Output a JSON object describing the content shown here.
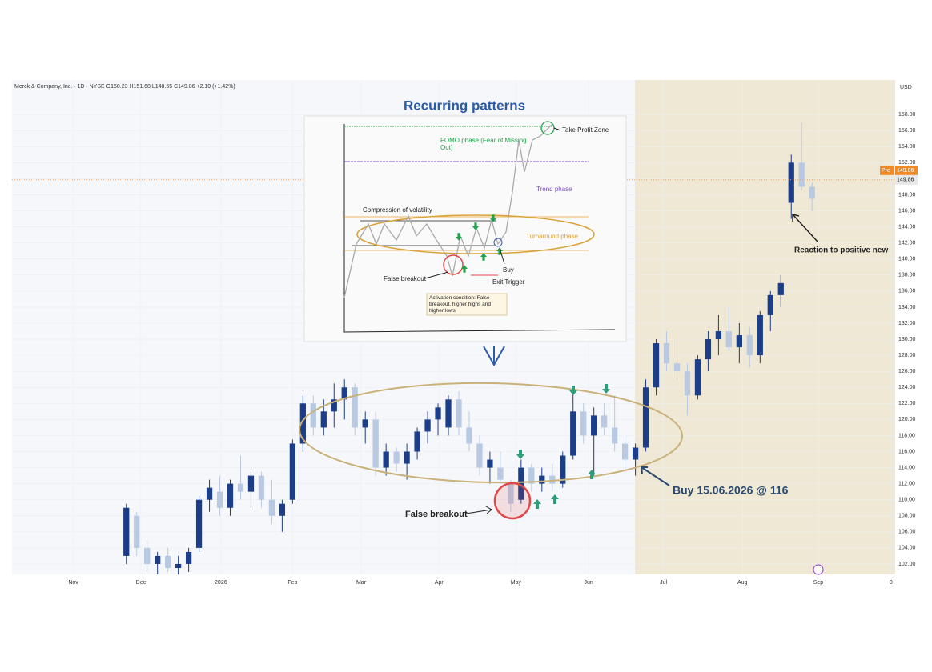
{
  "chart_data": {
    "type": "candlestick",
    "header": "Merck & Company, Inc. · 1D · NYSE  O150.23  H151.68  L148.55  C149.86  +2.10 (+1.42%)",
    "currency": "USD",
    "title": "Recurring patterns",
    "up_color": "#1c3d87",
    "down_color": "#b9c9e2",
    "xlim": [
      0,
      85
    ],
    "xticks": [
      {
        "value": 5.9,
        "label": "Nov"
      },
      {
        "value": 12.4,
        "label": "Dec"
      },
      {
        "value": 20.1,
        "label": "2026"
      },
      {
        "value": 27,
        "label": "Feb"
      },
      {
        "value": 33.6,
        "label": "Mar"
      },
      {
        "value": 41.1,
        "label": "Apr"
      },
      {
        "value": 48.5,
        "label": "May"
      },
      {
        "value": 55.5,
        "label": "Jun"
      },
      {
        "value": 62.7,
        "label": "Jul"
      },
      {
        "value": 70.3,
        "label": "Aug"
      },
      {
        "value": 77.6,
        "label": "Sep"
      },
      {
        "value": 84.6,
        "label": "0"
      }
    ],
    "ylim": [
      100.7,
      162.3
    ],
    "yticks": [
      {
        "value": 102,
        "label": "102.00"
      },
      {
        "value": 104,
        "label": "104.00"
      },
      {
        "value": 106,
        "label": "106.00"
      },
      {
        "value": 108,
        "label": "108.00"
      },
      {
        "value": 110,
        "label": "110.00"
      },
      {
        "value": 112,
        "label": "112.00"
      },
      {
        "value": 114,
        "label": "114.00"
      },
      {
        "value": 116,
        "label": "116.00"
      },
      {
        "value": 118,
        "label": "118.00"
      },
      {
        "value": 120,
        "label": "120.00"
      },
      {
        "value": 122,
        "label": "122.00"
      },
      {
        "value": 124,
        "label": "124.00"
      },
      {
        "value": 126,
        "label": "126.00"
      },
      {
        "value": 128,
        "label": "128.00"
      },
      {
        "value": 130,
        "label": "130.00"
      },
      {
        "value": 132,
        "label": "132.00"
      },
      {
        "value": 134,
        "label": "134.00"
      },
      {
        "value": 136,
        "label": "136.00"
      },
      {
        "value": 138,
        "label": "138.00"
      },
      {
        "value": 140,
        "label": "140.00"
      },
      {
        "value": 142,
        "label": "142.00"
      },
      {
        "value": 144,
        "label": "144.00"
      },
      {
        "value": 146,
        "label": "146.00"
      },
      {
        "value": 148,
        "label": "148.00"
      },
      {
        "value": 150,
        "label": "150.00"
      },
      {
        "value": 152,
        "label": "152.00"
      },
      {
        "value": 154,
        "label": "154.00"
      },
      {
        "value": 156,
        "label": "156.00"
      },
      {
        "value": 158,
        "label": "158.00"
      }
    ],
    "x": [
      11,
      12,
      13,
      14,
      15,
      16,
      17,
      18,
      19,
      20,
      21,
      22,
      23,
      24,
      25,
      26,
      27,
      28,
      29,
      30,
      31,
      32,
      33,
      34,
      35,
      36,
      37,
      38,
      39,
      40,
      41,
      42,
      43,
      44,
      45,
      46,
      47,
      48,
      49,
      50,
      51,
      52,
      53,
      54,
      55,
      56,
      57,
      58,
      59,
      60,
      61,
      62,
      63,
      64,
      65,
      66,
      67,
      68,
      69,
      70,
      71,
      72,
      73,
      74,
      75,
      76,
      77
    ],
    "open": [
      103,
      108,
      104,
      102,
      103,
      101.5,
      102,
      104,
      110,
      111,
      109,
      112,
      111,
      113,
      110,
      108,
      110,
      117,
      122,
      119,
      121,
      122.5,
      124,
      119,
      120,
      114,
      116,
      114.5,
      116,
      118.5,
      120,
      119,
      122.5,
      119,
      117,
      114,
      114,
      112,
      110,
      114,
      112,
      113,
      112,
      115.5,
      121,
      118,
      120.5,
      119,
      117,
      115,
      116.5,
      124,
      129.5,
      127,
      126,
      123,
      127.5,
      130,
      131,
      129,
      130.5,
      128,
      133,
      135.5,
      147,
      152,
      149
    ],
    "high": [
      109.5,
      108.5,
      105,
      103.5,
      104,
      103,
      104,
      110.5,
      112.5,
      113,
      112.5,
      115.5,
      113.5,
      113.5,
      112.5,
      110,
      117.5,
      123,
      123,
      122.5,
      124.5,
      125,
      124.5,
      121,
      121,
      117,
      116.5,
      117,
      119,
      121,
      122,
      123,
      123.5,
      121,
      118,
      116,
      116,
      112.5,
      115,
      114.5,
      114,
      114.5,
      116,
      123.5,
      122,
      121.5,
      122,
      123,
      118,
      117,
      125,
      130,
      131,
      130,
      127,
      128,
      131,
      133,
      134,
      132,
      131.5,
      133.5,
      136,
      138,
      153,
      157,
      149.5
    ],
    "low": [
      102,
      103,
      101,
      100.5,
      101,
      100.5,
      101,
      103.5,
      108.5,
      108,
      108,
      110,
      109,
      109,
      107,
      106,
      109.5,
      116,
      118,
      118,
      119,
      120,
      118,
      117,
      113,
      113,
      113.5,
      112.5,
      115,
      117,
      118,
      118,
      118,
      116,
      113,
      112,
      112,
      108.5,
      109.5,
      111,
      111,
      111,
      111.5,
      115,
      117,
      113,
      118,
      116,
      113.5,
      113,
      116,
      123,
      126,
      125,
      120.5,
      122.5,
      126,
      128,
      128.5,
      127,
      126.5,
      127,
      131,
      134,
      145,
      148.5,
      146
    ],
    "close": [
      109,
      104,
      102,
      103,
      101.5,
      102,
      103.5,
      110,
      111.5,
      109,
      112,
      111,
      113,
      110,
      108,
      109.5,
      117,
      122,
      119,
      121,
      122.5,
      124,
      119,
      120,
      114,
      116,
      114.5,
      116,
      118.5,
      120,
      121.5,
      122.5,
      119,
      117,
      114,
      115,
      112.5,
      109.5,
      114,
      112,
      113,
      112,
      115.5,
      121,
      118,
      120.5,
      119,
      117,
      115,
      116.5,
      124,
      129.5,
      127,
      126,
      123,
      127.5,
      130,
      131,
      129,
      130.5,
      128,
      133,
      135.5,
      137,
      152,
      149,
      147.5
    ],
    "last_price": 149.86,
    "last_price_label": "149.86",
    "pre_market": {
      "tag": "Pre",
      "label": "149.86"
    },
    "annotations": {
      "false_breakout": "False breakout",
      "buy": "Buy 15.06.2026 @ 116",
      "reaction": "Reaction to positive new"
    },
    "inset": {
      "take_profit": "Take Profit Zone",
      "fomo": "FOMO phase (Fear of Missing Out)",
      "trend": "Trend phase",
      "compression": "Compression of volatility",
      "turnaround": "Turnaround phase",
      "buy": "Buy",
      "false_breakout": "False breakout",
      "exit": "Exit Trigger",
      "activation": "Activation condition: False breakout, higher highs and higher lows"
    }
  }
}
